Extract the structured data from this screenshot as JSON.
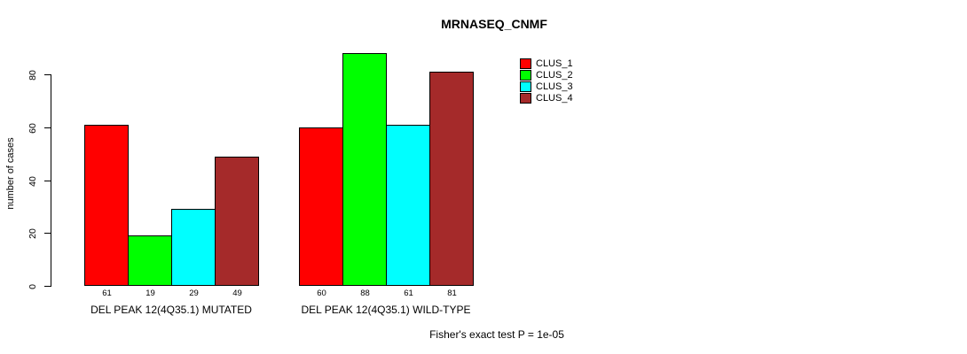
{
  "chart_data": {
    "type": "bar",
    "title": "MRNASEQ_CNMF",
    "xlabel": "",
    "ylabel": "number of cases",
    "ylim": [
      0,
      88
    ],
    "yticks": [
      0,
      20,
      40,
      60,
      80
    ],
    "grid": false,
    "legend_position": "top-right",
    "categories": [
      "DEL PEAK 12(4Q35.1) MUTATED",
      "DEL PEAK 12(4Q35.1) WILD-TYPE"
    ],
    "series": [
      {
        "name": "CLUS_1",
        "color": "#FF0000",
        "values": [
          61,
          60
        ]
      },
      {
        "name": "CLUS_2",
        "color": "#00FF00",
        "values": [
          19,
          88
        ]
      },
      {
        "name": "CLUS_3",
        "color": "#00FFFF",
        "values": [
          29,
          61
        ]
      },
      {
        "name": "CLUS_4",
        "color": "#A52A2A",
        "values": [
          49,
          81
        ]
      }
    ],
    "bar_value_labels": [
      [
        61,
        19,
        29,
        49
      ],
      [
        60,
        88,
        61,
        81
      ]
    ],
    "annotation": "Fisher's exact test P = 1e-05"
  },
  "colors": {
    "background": "#FFFFFF",
    "axis": "#000000",
    "text": "#000000"
  }
}
